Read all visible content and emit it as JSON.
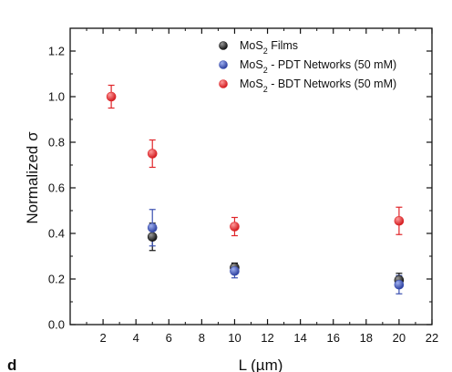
{
  "panel_letter": "d",
  "chart_data": {
    "type": "scatter",
    "xlabel": "L (µm)",
    "ylabel": "Normalized σ",
    "xlim": [
      0,
      22
    ],
    "ylim": [
      0,
      1.3
    ],
    "xticks": [
      "2",
      "4",
      "6",
      "8",
      "10",
      "12",
      "14",
      "16",
      "18",
      "20",
      "22"
    ],
    "yticks": [
      "0.0",
      "0.2",
      "0.4",
      "0.6",
      "0.8",
      "1.0",
      "1.2"
    ],
    "legend_position": "top-right",
    "series": [
      {
        "name_main": "MoS",
        "name_sub": "2",
        "name_rest": " Films",
        "color": "#111111",
        "points": [
          {
            "x": 5,
            "y": 0.385,
            "err": 0.06
          },
          {
            "x": 10,
            "y": 0.25,
            "err": 0.02
          },
          {
            "x": 20,
            "y": 0.195,
            "err": 0.03
          }
        ]
      },
      {
        "name_main": "MoS",
        "name_sub": "2",
        "name_rest": " - PDT Networks (50 mM)",
        "color": "#3a4fb0",
        "points": [
          {
            "x": 5,
            "y": 0.425,
            "err": 0.08
          },
          {
            "x": 10,
            "y": 0.235,
            "err": 0.03
          },
          {
            "x": 20,
            "y": 0.175,
            "err": 0.04
          }
        ]
      },
      {
        "name_main": "MoS",
        "name_sub": "2",
        "name_rest": " - BDT Networks (50 mM)",
        "color": "#e0262a",
        "points": [
          {
            "x": 2.5,
            "y": 1.0,
            "err": 0.05
          },
          {
            "x": 5,
            "y": 0.75,
            "err": 0.06
          },
          {
            "x": 10,
            "y": 0.43,
            "err": 0.04
          },
          {
            "x": 20,
            "y": 0.455,
            "err": 0.06
          }
        ]
      }
    ]
  }
}
